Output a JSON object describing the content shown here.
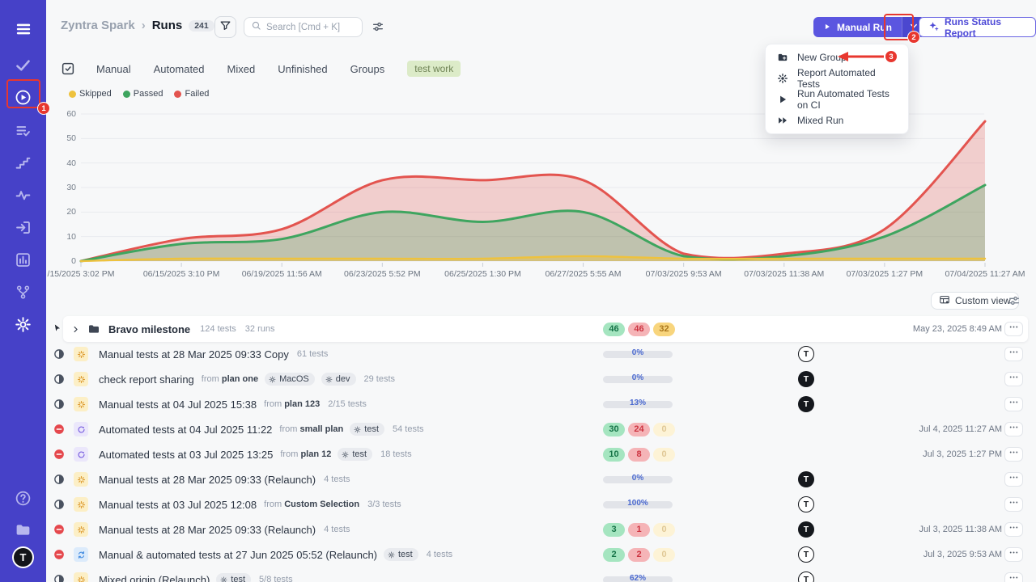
{
  "colors": {
    "sidebar_bg": "#4641c8",
    "accent": "#5b56e0",
    "annotation_red": "#e8372f",
    "skipped": "#eec23e",
    "passed": "#3ea55f",
    "failed": "#e3544f",
    "progress_blue": "#8fbaf3"
  },
  "sidebar": {
    "items": [
      {
        "icon": "menu",
        "bright": true
      },
      {
        "icon": "check",
        "bright": false
      },
      {
        "icon": "play-circle",
        "bright": true
      },
      {
        "icon": "list-check",
        "bright": false
      },
      {
        "icon": "steps",
        "bright": false
      },
      {
        "icon": "pulse",
        "bright": false
      },
      {
        "icon": "sign-in",
        "bright": false
      },
      {
        "icon": "bar-chart",
        "bright": false
      },
      {
        "icon": "branch",
        "bright": false
      },
      {
        "icon": "gear",
        "bright": true
      }
    ],
    "bottom_items": [
      {
        "icon": "help"
      },
      {
        "icon": "folder"
      }
    ],
    "avatar_letter": "T"
  },
  "header": {
    "brand": "Zyntra Spark",
    "separator": "›",
    "page": "Runs",
    "count": "241",
    "search_placeholder": "Search [Cmd + K]",
    "manual_run_label": "Manual Run",
    "report_label": "Runs Status Report"
  },
  "menu": {
    "items": [
      {
        "icon": "folder-plus",
        "label": "New Group"
      },
      {
        "icon": "gear-arrows",
        "label": "Report Automated Tests"
      },
      {
        "icon": "play",
        "label": "Run Automated Tests on CI"
      },
      {
        "icon": "fast-forward",
        "label": "Mixed Run"
      }
    ]
  },
  "annotations": {
    "badge1": "1",
    "badge2": "2",
    "badge3": "3"
  },
  "tabs": {
    "items": [
      "Manual",
      "Automated",
      "Mixed",
      "Unfinished",
      "Groups"
    ],
    "pill": "test work"
  },
  "chart_data": {
    "type": "area",
    "x_labels": [
      "/15/2025 3:02 PM",
      "06/15/2025 3:10 PM",
      "06/19/2025 11:56 AM",
      "06/23/2025 5:52 PM",
      "06/25/2025 1:30 PM",
      "06/27/2025 5:55 AM",
      "07/03/2025 9:53 AM",
      "07/03/2025 11:38 AM",
      "07/03/2025 1:27 PM",
      "07/04/2025 11:27 AM"
    ],
    "ylim": [
      0,
      60
    ],
    "yticks": [
      0,
      10,
      20,
      30,
      40,
      50,
      60
    ],
    "grid": true,
    "legend_position": "top-left",
    "series": [
      {
        "name": "Skipped",
        "color": "#eec23e",
        "fill": "rgba(240,196,64,0.45)",
        "values": [
          0,
          1,
          1,
          1,
          1,
          2,
          1,
          1,
          1,
          1
        ]
      },
      {
        "name": "Passed",
        "color": "#3ea55f",
        "fill": "rgba(62,164,94,0.28)",
        "values": [
          0,
          7,
          9,
          20,
          16,
          20,
          2,
          2,
          10,
          31
        ]
      },
      {
        "name": "Failed",
        "color": "#e3544f",
        "fill": "rgba(224,80,76,0.25)",
        "values": [
          0,
          9,
          13,
          33,
          33,
          33,
          3,
          3,
          13,
          57
        ]
      }
    ]
  },
  "toolbar": {
    "custom_view": "Custom view"
  },
  "table": {
    "from_label": "from",
    "rows": [
      {
        "type": "group",
        "title": "Bravo milestone",
        "meta": [
          "124 tests",
          "32 runs"
        ],
        "stats": [
          46,
          46,
          32
        ],
        "time": "May 23, 2025 8:49 AM"
      },
      {
        "type": "run",
        "status": "in-progress",
        "kind": "manual",
        "title": "Manual tests at 28 Mar 2025 09:33 Copy",
        "tests": "61 tests",
        "progress": 0,
        "progress_label": "0%",
        "avatar": "outline"
      },
      {
        "type": "run",
        "status": "in-progress",
        "kind": "manual",
        "title": "check report sharing",
        "from": "plan one",
        "badges": [
          "MacOS",
          "dev"
        ],
        "tests": "29 tests",
        "progress": 0,
        "progress_label": "0%",
        "avatar": "solid"
      },
      {
        "type": "run",
        "status": "in-progress",
        "kind": "manual",
        "title": "Manual tests at 04 Jul 2025 15:38",
        "from": "plan 123",
        "tests": "2/15 tests",
        "progress": 13,
        "progress_label": "13%",
        "avatar": "solid"
      },
      {
        "type": "run",
        "status": "stopped",
        "kind": "automated",
        "title": "Automated tests at 04 Jul 2025 11:22",
        "from": "small plan",
        "badges": [
          "test"
        ],
        "tests": "54 tests",
        "stats": [
          30,
          24,
          0
        ],
        "time": "Jul 4, 2025 11:27 AM"
      },
      {
        "type": "run",
        "status": "stopped",
        "kind": "automated",
        "title": "Automated tests at 03 Jul 2025 13:25",
        "from": "plan 12",
        "badges": [
          "test"
        ],
        "tests": "18 tests",
        "stats": [
          10,
          8,
          0
        ],
        "time": "Jul 3, 2025 1:27 PM"
      },
      {
        "type": "run",
        "status": "in-progress",
        "kind": "manual",
        "title": "Manual tests at 28 Mar 2025 09:33 (Relaunch)",
        "tests": "4 tests",
        "progress": 0,
        "progress_label": "0%",
        "avatar": "solid"
      },
      {
        "type": "run",
        "status": "in-progress",
        "kind": "manual",
        "title": "Manual tests at 03 Jul 2025 12:08",
        "from": "Custom Selection",
        "tests": "3/3 tests",
        "progress": 100,
        "progress_label": "100%",
        "avatar": "outline"
      },
      {
        "type": "run",
        "status": "stopped",
        "kind": "manual",
        "title": "Manual tests at 28 Mar 2025 09:33 (Relaunch)",
        "tests": "4 tests",
        "stats": [
          3,
          1,
          0
        ],
        "avatar": "solid",
        "time": "Jul 3, 2025 11:38 AM"
      },
      {
        "type": "run",
        "status": "stopped",
        "kind": "mixed",
        "title": "Manual & automated tests at 27 Jun 2025 05:52 (Relaunch)",
        "badges": [
          "test"
        ],
        "tests": "4 tests",
        "stats": [
          2,
          2,
          0
        ],
        "avatar": "outline",
        "time": "Jul 3, 2025 9:53 AM"
      },
      {
        "type": "run",
        "status": "in-progress",
        "kind": "manual",
        "title": "Mixed origin (Relaunch)",
        "badges": [
          "test"
        ],
        "tests": "5/8 tests",
        "progress": 62,
        "progress_label": "62%",
        "avatar": "outline"
      }
    ],
    "avatar_letter": "T"
  }
}
